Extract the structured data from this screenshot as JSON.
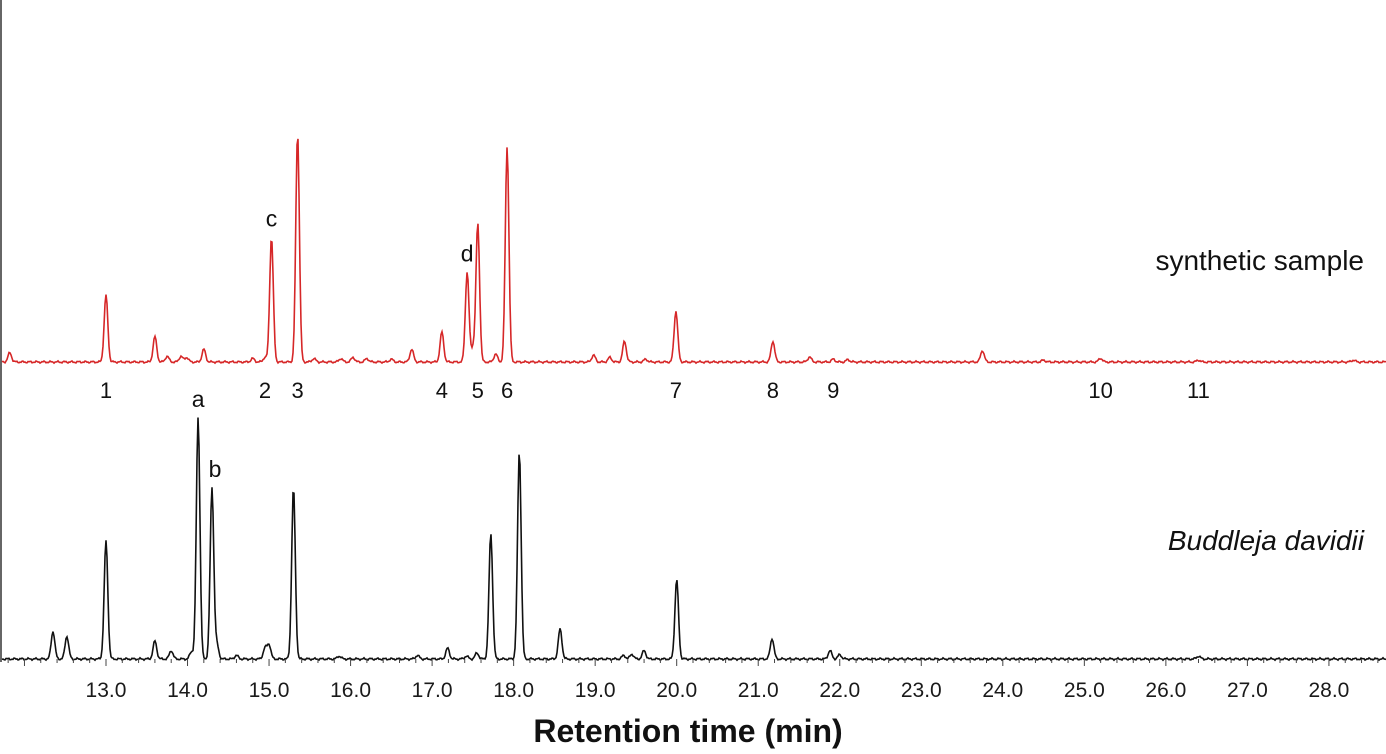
{
  "chart_data": {
    "type": "line",
    "xlabel": "Retention time (min)",
    "xlim": [
      11.7,
      28.7
    ],
    "x_ticks": [
      "13.0",
      "14.0",
      "15.0",
      "16.0",
      "17.0",
      "18.0",
      "19.0",
      "20.0",
      "21.0",
      "22.0",
      "23.0",
      "24.0",
      "25.0",
      "26.0",
      "27.0",
      "28.0"
    ],
    "series": [
      {
        "name": "synthetic sample",
        "color": "#d62728",
        "peaks": [
          [
            11.82,
            0.04
          ],
          [
            13.0,
            0.29
          ],
          [
            13.6,
            0.11
          ],
          [
            13.75,
            0.025
          ],
          [
            13.92,
            0.025
          ],
          [
            13.99,
            0.02
          ],
          [
            14.2,
            0.055
          ],
          [
            14.8,
            0.015
          ],
          [
            14.95,
            0.02
          ],
          [
            15.03,
            0.54
          ],
          [
            15.35,
            0.99
          ],
          [
            15.55,
            0.015
          ],
          [
            15.88,
            0.015
          ],
          [
            16.03,
            0.02
          ],
          [
            16.2,
            0.015
          ],
          [
            16.5,
            0.012
          ],
          [
            16.75,
            0.055
          ],
          [
            17.12,
            0.13
          ],
          [
            17.43,
            0.39
          ],
          [
            17.5,
            0.06
          ],
          [
            17.56,
            0.6
          ],
          [
            17.78,
            0.035
          ],
          [
            17.92,
            0.93
          ],
          [
            18.98,
            0.03
          ],
          [
            19.18,
            0.02
          ],
          [
            19.36,
            0.09
          ],
          [
            19.62,
            0.012
          ],
          [
            19.99,
            0.21
          ],
          [
            20.0,
            0.012
          ],
          [
            21.18,
            0.09
          ],
          [
            21.63,
            0.022
          ],
          [
            21.92,
            0.012
          ],
          [
            22.1,
            0.01
          ],
          [
            23.75,
            0.05
          ],
          [
            24.5,
            0.008
          ],
          [
            25.2,
            0.016
          ],
          [
            26.4,
            0.008
          ],
          [
            28.3,
            0.008
          ]
        ]
      },
      {
        "name": "Buddleja davidii",
        "color": "#111111",
        "peaks": [
          [
            12.35,
            0.115
          ],
          [
            12.52,
            0.095
          ],
          [
            13.0,
            0.49
          ],
          [
            13.6,
            0.075
          ],
          [
            13.8,
            0.035
          ],
          [
            14.05,
            0.03
          ],
          [
            14.13,
            1.0
          ],
          [
            14.3,
            0.71
          ],
          [
            14.36,
            0.06
          ],
          [
            14.6,
            0.015
          ],
          [
            14.95,
            0.045
          ],
          [
            15.0,
            0.06
          ],
          [
            15.3,
            0.71
          ],
          [
            15.86,
            0.012
          ],
          [
            16.82,
            0.015
          ],
          [
            17.19,
            0.045
          ],
          [
            17.42,
            0.012
          ],
          [
            17.55,
            0.025
          ],
          [
            17.72,
            0.52
          ],
          [
            18.07,
            0.86
          ],
          [
            18.57,
            0.125
          ],
          [
            19.35,
            0.015
          ],
          [
            19.45,
            0.02
          ],
          [
            19.6,
            0.035
          ],
          [
            20.0,
            0.33
          ],
          [
            21.17,
            0.085
          ],
          [
            21.88,
            0.035
          ],
          [
            22.0,
            0.018
          ],
          [
            26.4,
            0.012
          ]
        ]
      }
    ],
    "series_labels": {
      "synthetic": "synthetic sample",
      "natural": "Buddleja davidii"
    },
    "numbered_peaks": [
      {
        "label": "1",
        "x": 13.0
      },
      {
        "label": "2",
        "x": 14.95
      },
      {
        "label": "3",
        "x": 15.35
      },
      {
        "label": "4",
        "x": 17.12
      },
      {
        "label": "5",
        "x": 17.56
      },
      {
        "label": "6",
        "x": 17.92
      },
      {
        "label": "7",
        "x": 19.99
      },
      {
        "label": "8",
        "x": 21.18
      },
      {
        "label": "9",
        "x": 21.92
      },
      {
        "label": "10",
        "x": 25.2
      },
      {
        "label": "11",
        "x": 26.4
      }
    ],
    "letter_peaks": [
      {
        "label": "a",
        "x": 14.13,
        "series": "Buddleja davidii"
      },
      {
        "label": "b",
        "x": 14.3,
        "series": "Buddleja davidii"
      },
      {
        "label": "c",
        "x": 15.03,
        "series": "synthetic sample"
      },
      {
        "label": "d",
        "x": 17.43,
        "series": "synthetic sample"
      }
    ]
  }
}
